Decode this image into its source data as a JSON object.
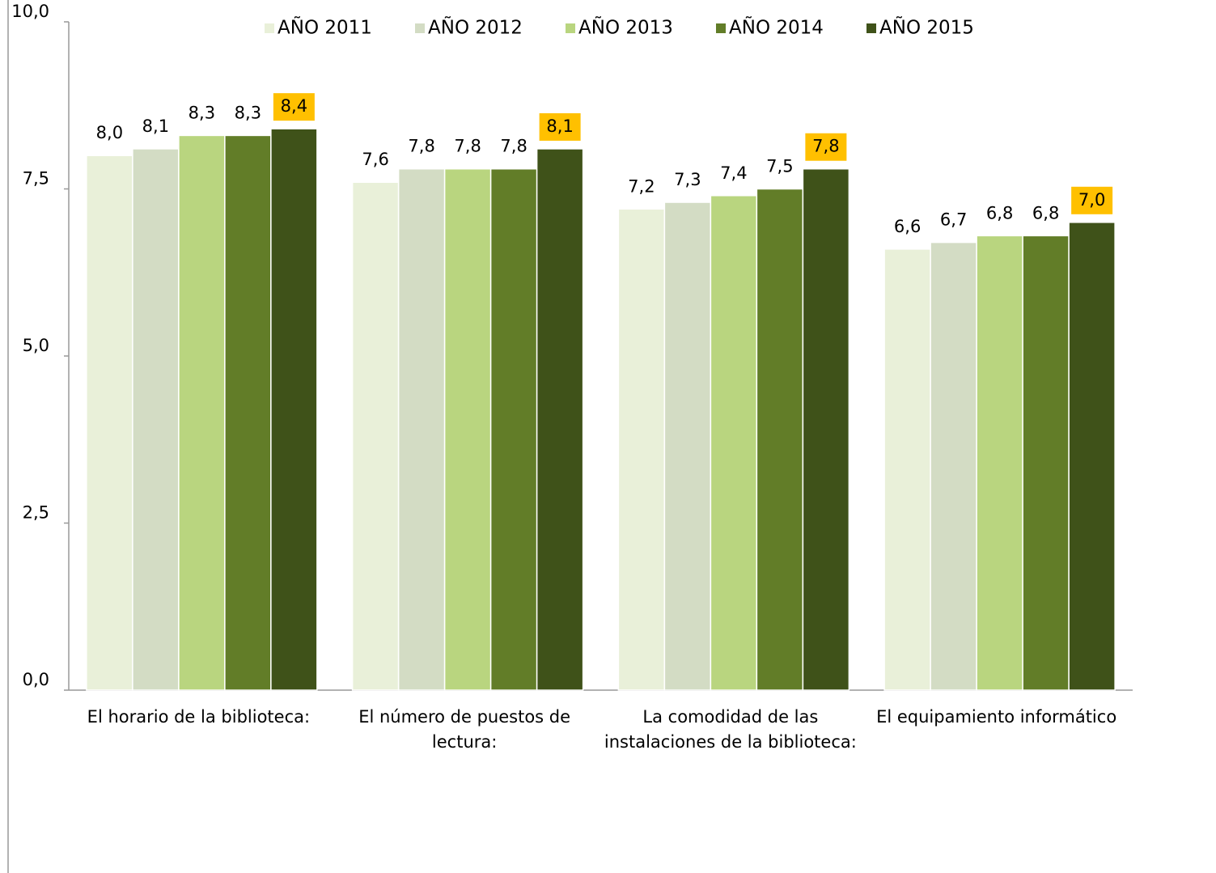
{
  "chart_data": {
    "type": "bar",
    "categories": [
      "El horario de la biblioteca:",
      "El número de puestos de lectura:",
      "La comodidad de las instalaciones de la biblioteca:",
      "El equipamiento informático"
    ],
    "series": [
      {
        "name": "AÑO 2011",
        "color": "#e9f0d9",
        "values": [
          8.0,
          7.6,
          7.2,
          6.6
        ],
        "value_labels": [
          "8,0",
          "7,6",
          "7,2",
          "6,6"
        ]
      },
      {
        "name": "AÑO 2012",
        "color": "#d3dcc4",
        "values": [
          8.1,
          7.8,
          7.3,
          6.7
        ],
        "value_labels": [
          "8,1",
          "7,8",
          "7,3",
          "6,7"
        ]
      },
      {
        "name": "AÑO 2013",
        "color": "#b9d57f",
        "values": [
          8.3,
          7.8,
          7.4,
          6.8
        ],
        "value_labels": [
          "8,3",
          "7,8",
          "7,4",
          "6,8"
        ]
      },
      {
        "name": "AÑO 2014",
        "color": "#627d28",
        "values": [
          8.3,
          7.8,
          7.5,
          6.8
        ],
        "value_labels": [
          "8,3",
          "7,8",
          "7,5",
          "6,8"
        ]
      },
      {
        "name": "AÑO 2015",
        "color": "#3f5219",
        "values": [
          8.4,
          8.1,
          7.8,
          7.0
        ],
        "value_labels": [
          "8,4",
          "8,1",
          "7,8",
          "7,0"
        ],
        "label_background": "#ffc000"
      }
    ],
    "ylim": [
      0,
      10
    ],
    "yticks": [
      {
        "value": 0,
        "label": "0,0"
      },
      {
        "value": 2.5,
        "label": "2,5"
      },
      {
        "value": 5,
        "label": "5,0"
      },
      {
        "value": 7.5,
        "label": "7,5"
      },
      {
        "value": 10,
        "label": "10,0"
      }
    ],
    "legend": "top",
    "grid": false
  }
}
